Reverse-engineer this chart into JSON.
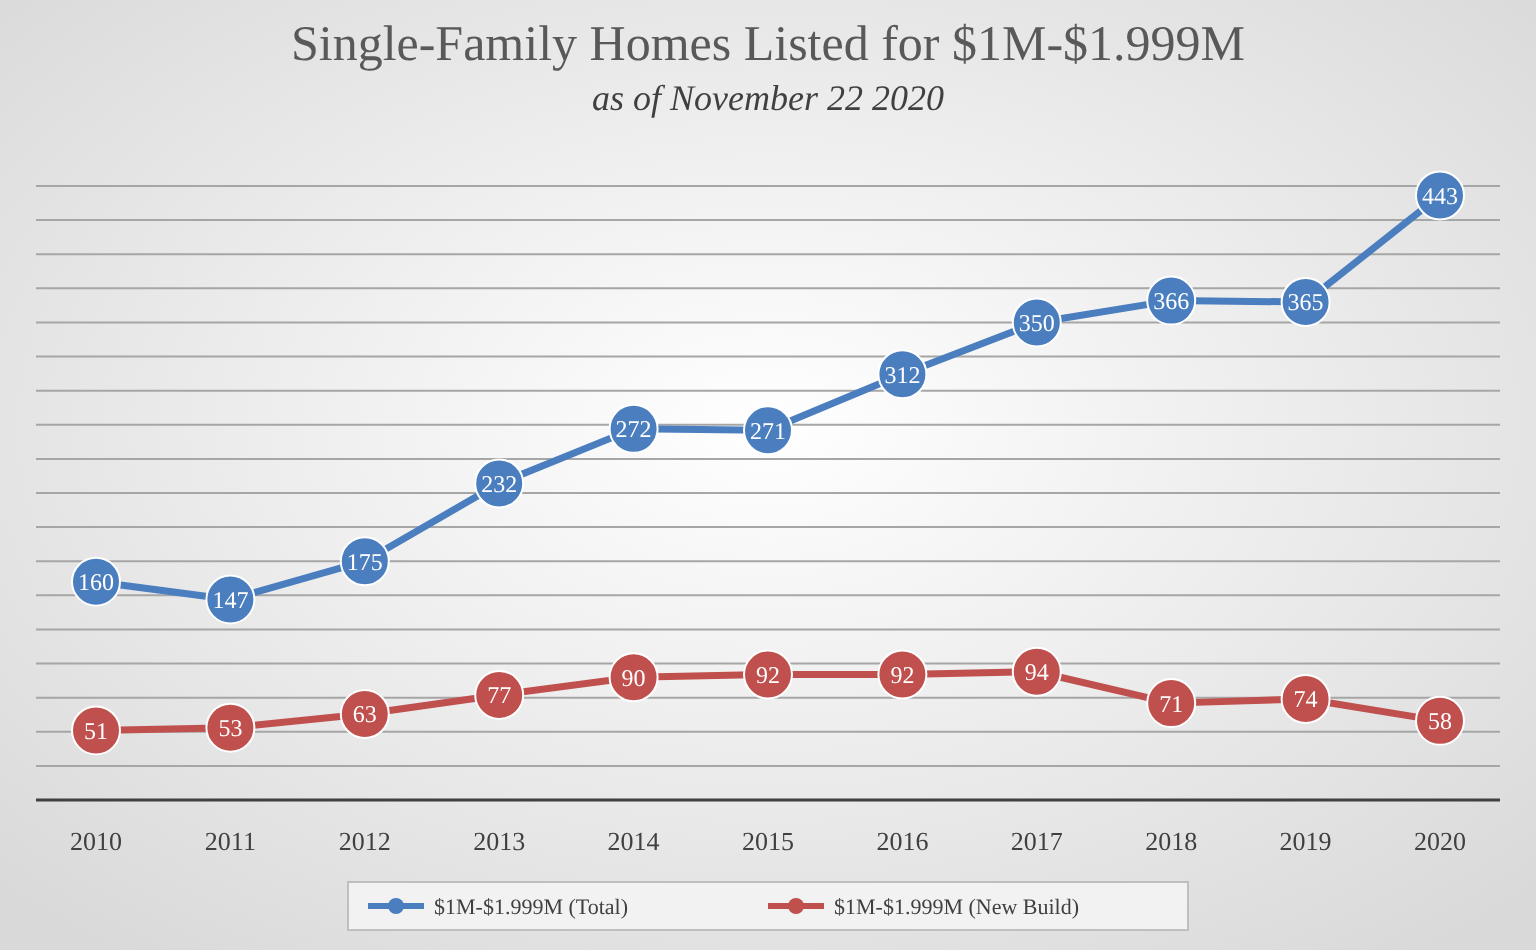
{
  "chart_data": {
    "type": "line",
    "title": "Single-Family Homes Listed for $1M-$1.999M",
    "subtitle": "as of November 22 2020",
    "categories": [
      "2010",
      "2011",
      "2012",
      "2013",
      "2014",
      "2015",
      "2016",
      "2017",
      "2018",
      "2019",
      "2020"
    ],
    "series": [
      {
        "name": "$1M-$1.999M (Total)",
        "color": "#4a7ebf",
        "values": [
          160,
          147,
          175,
          232,
          272,
          271,
          312,
          350,
          366,
          365,
          443
        ]
      },
      {
        "name": "$1M-$1.999M (New Build)",
        "color": "#c0504d",
        "values": [
          51,
          53,
          63,
          77,
          90,
          92,
          92,
          94,
          71,
          74,
          58
        ]
      }
    ],
    "ylim": [
      0,
      450
    ],
    "yticks": [
      {
        "value": 0,
        "label": null
      },
      {
        "value": 25,
        "label": null
      },
      {
        "value": 50,
        "label": null
      },
      {
        "value": 75,
        "label": null
      },
      {
        "value": 100,
        "label": null
      },
      {
        "value": 125,
        "label": null
      },
      {
        "value": 150,
        "label": null
      },
      {
        "value": 175,
        "label": null
      },
      {
        "value": 200,
        "label": null
      },
      {
        "value": 225,
        "label": null
      },
      {
        "value": 250,
        "label": null
      },
      {
        "value": 275,
        "label": null
      },
      {
        "value": 300,
        "label": null
      },
      {
        "value": 325,
        "label": null
      },
      {
        "value": 350,
        "label": null
      },
      {
        "value": 375,
        "label": null
      },
      {
        "value": 400,
        "label": null
      },
      {
        "value": 425,
        "label": null
      },
      {
        "value": 450,
        "label": null
      }
    ],
    "tick_labels": "x",
    "grid": "y",
    "legend": "bottom",
    "marker": "circle",
    "line_style": "solid",
    "data_labels": true
  }
}
